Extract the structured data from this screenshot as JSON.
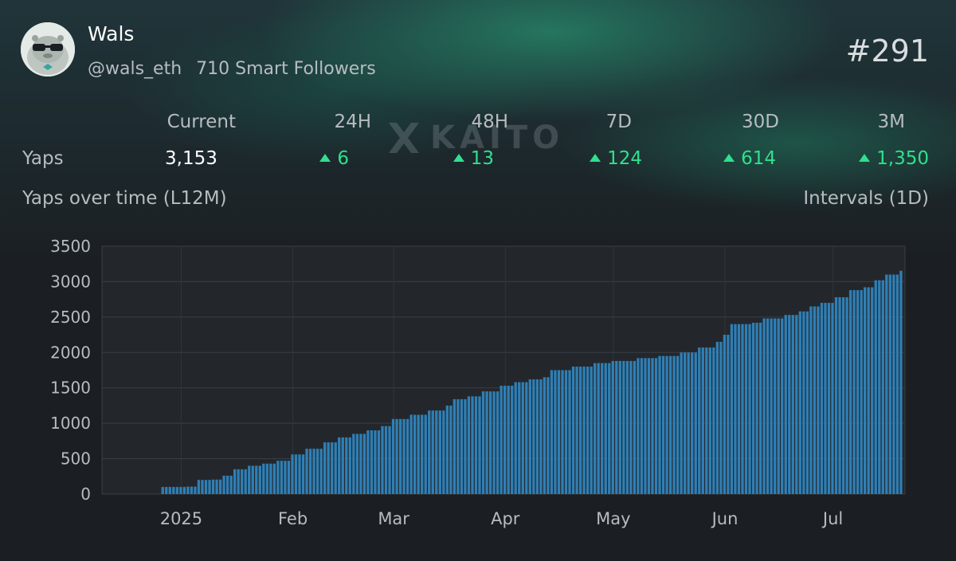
{
  "profile": {
    "name": "Wals",
    "handle": "@wals_eth",
    "smart_followers": "710 Smart Followers",
    "rank": "#291"
  },
  "stats": {
    "row_label": "Yaps",
    "columns": [
      "Current",
      "24H",
      "48H",
      "7D",
      "30D",
      "3M"
    ],
    "current": "3,153",
    "changes": [
      "6",
      "13",
      "124",
      "614",
      "1,350"
    ]
  },
  "chart_section": {
    "title": "Yaps over time (L12M)",
    "interval": "Intervals (1D)"
  },
  "watermark": "KAITO",
  "colors": {
    "accent_green": "#2fe08d",
    "bar": "#2f7fb5",
    "background": "#1b1e22"
  },
  "chart_data": {
    "type": "bar",
    "x_axis": "date",
    "ylim": [
      0,
      3500
    ],
    "yticks": [
      0,
      500,
      1000,
      1500,
      2000,
      2500,
      3000,
      3500
    ],
    "xticks": [
      {
        "label": "2025",
        "date": "2025-01-01"
      },
      {
        "label": "Feb",
        "date": "2025-02-01"
      },
      {
        "label": "Mar",
        "date": "2025-03-01"
      },
      {
        "label": "Apr",
        "date": "2025-04-01"
      },
      {
        "label": "May",
        "date": "2025-05-01"
      },
      {
        "label": "Jun",
        "date": "2025-06-01"
      },
      {
        "label": "Jul",
        "date": "2025-07-01"
      }
    ],
    "x_start": "2024-12-10",
    "x_end": "2025-07-21",
    "grid": true,
    "series": [
      {
        "points": [
          [
            "2024-12-27",
            100
          ],
          [
            "2025-01-03",
            105
          ],
          [
            "2025-01-06",
            200
          ],
          [
            "2025-01-10",
            205
          ],
          [
            "2025-01-13",
            260
          ],
          [
            "2025-01-16",
            350
          ],
          [
            "2025-01-20",
            400
          ],
          [
            "2025-01-24",
            430
          ],
          [
            "2025-01-28",
            470
          ],
          [
            "2025-02-01",
            560
          ],
          [
            "2025-02-05",
            640
          ],
          [
            "2025-02-10",
            730
          ],
          [
            "2025-02-14",
            800
          ],
          [
            "2025-02-18",
            850
          ],
          [
            "2025-02-22",
            900
          ],
          [
            "2025-02-26",
            960
          ],
          [
            "2025-03-01",
            1060
          ],
          [
            "2025-03-06",
            1120
          ],
          [
            "2025-03-11",
            1180
          ],
          [
            "2025-03-16",
            1250
          ],
          [
            "2025-03-18",
            1340
          ],
          [
            "2025-03-22",
            1380
          ],
          [
            "2025-03-26",
            1450
          ],
          [
            "2025-03-31",
            1530
          ],
          [
            "2025-04-04",
            1580
          ],
          [
            "2025-04-08",
            1620
          ],
          [
            "2025-04-12",
            1650
          ],
          [
            "2025-04-14",
            1750
          ],
          [
            "2025-04-20",
            1800
          ],
          [
            "2025-04-26",
            1850
          ],
          [
            "2025-05-01",
            1880
          ],
          [
            "2025-05-08",
            1920
          ],
          [
            "2025-05-14",
            1950
          ],
          [
            "2025-05-20",
            2000
          ],
          [
            "2025-05-25",
            2070
          ],
          [
            "2025-05-30",
            2150
          ],
          [
            "2025-06-01",
            2250
          ],
          [
            "2025-06-03",
            2400
          ],
          [
            "2025-06-09",
            2420
          ],
          [
            "2025-06-12",
            2480
          ],
          [
            "2025-06-18",
            2530
          ],
          [
            "2025-06-22",
            2580
          ],
          [
            "2025-06-25",
            2650
          ],
          [
            "2025-06-28",
            2700
          ],
          [
            "2025-07-02",
            2780
          ],
          [
            "2025-07-06",
            2880
          ],
          [
            "2025-07-10",
            2920
          ],
          [
            "2025-07-13",
            3020
          ],
          [
            "2025-07-16",
            3100
          ],
          [
            "2025-07-20",
            3153
          ]
        ]
      }
    ]
  }
}
